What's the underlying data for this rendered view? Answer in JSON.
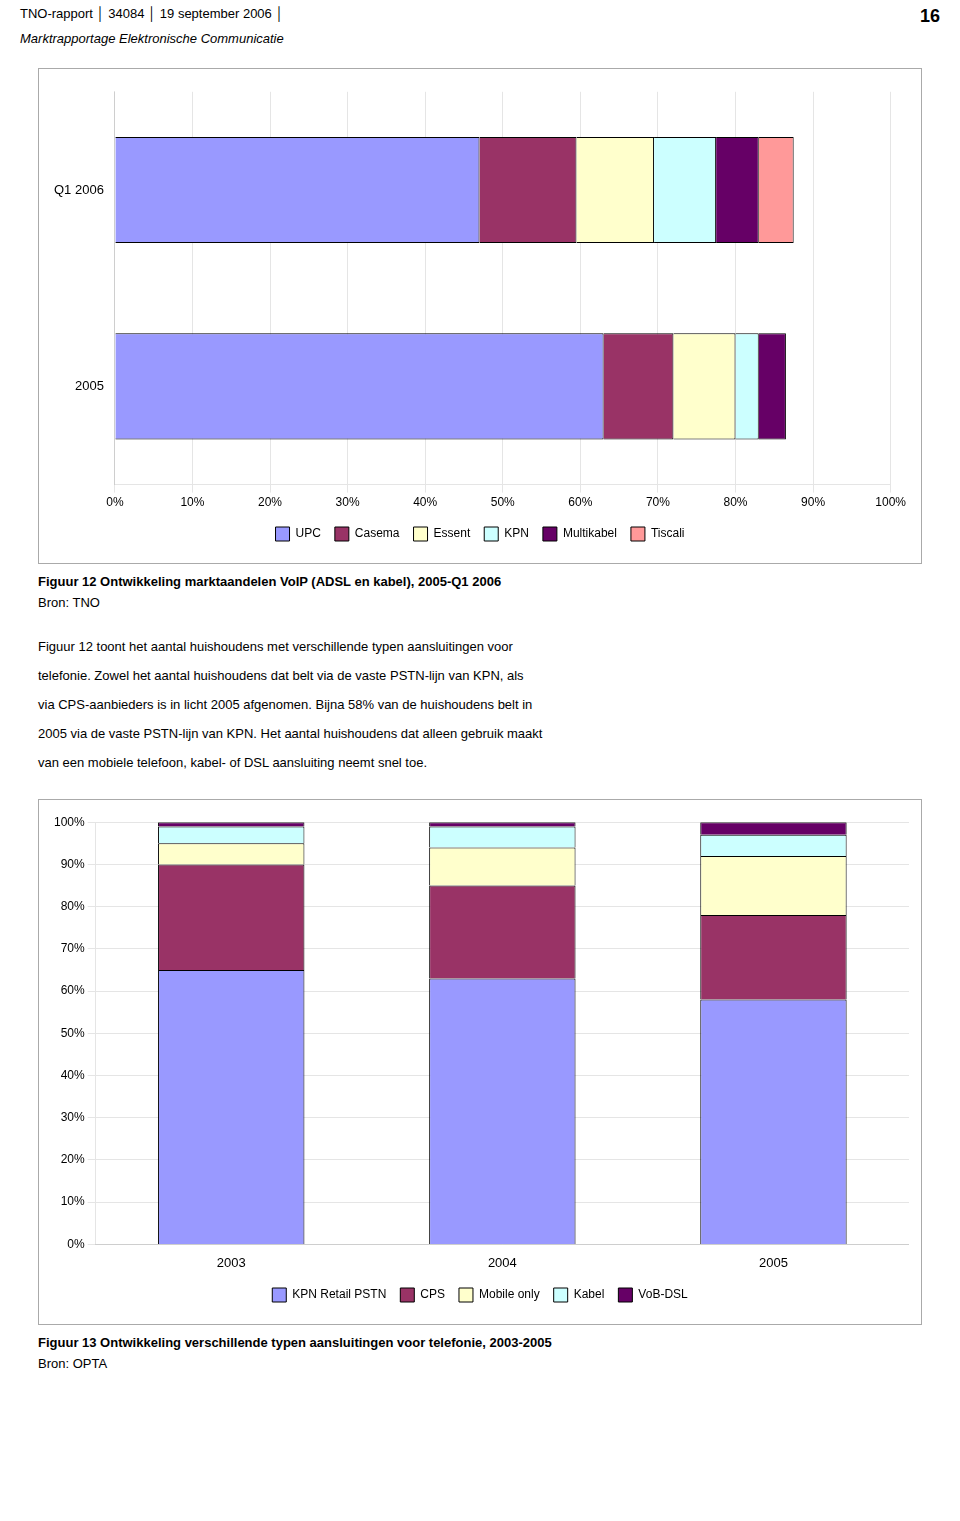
{
  "page_header": "TNO-rapport │ 34084  │ 19 september 2006 │",
  "page_number": "16",
  "page_subtitle": "Marktrapportage Elektronische Communicatie",
  "text_lines": [
    "Figuur 12 toont het aantal huishoudens met verschillende typen aansluitingen voor",
    "telefonie. Zowel het aantal huishoudens dat belt via de vaste PSTN-lijn van KPN, als",
    "via CPS-aanbieders is in licht 2005 afgenomen. Bijna 58% van de huishoudens belt in",
    "2005 via de vaste PSTN-lijn van KPN. Het aantal huishoudens dat alleen gebruik maakt",
    "van een mobiele telefoon, kabel- of DSL aansluiting neemt snel toe."
  ],
  "chart_data": [
    {
      "type": "bar",
      "orientation": "horizontal",
      "stacked": true,
      "title": "Figuur 12 Ontwikkeling marktaandelen VoIP (ADSL en kabel), 2005-Q1 2006",
      "annotations": [
        "Bron: TNO"
      ],
      "categories": [
        "Q1 2006",
        "2005"
      ],
      "series": [
        {
          "name": "UPC",
          "color": "#9999ff",
          "values": [
            47.0,
            63.0
          ]
        },
        {
          "name": "Casema",
          "color": "#993366",
          "values": [
            12.5,
            9.0
          ]
        },
        {
          "name": "Essent",
          "color": "#ffffcc",
          "values": [
            10.0,
            8.0
          ]
        },
        {
          "name": "KPN",
          "color": "#ccffff",
          "values": [
            8.0,
            3.0
          ]
        },
        {
          "name": "Multikabel",
          "color": "#660066",
          "values": [
            5.5,
            3.5
          ]
        },
        {
          "name": "Tiscali",
          "color": "#ff9999",
          "values": [
            4.5,
            0.0
          ]
        }
      ],
      "xlim": [
        0,
        100
      ],
      "xticks": [
        {
          "value": 0,
          "label": "0%"
        },
        {
          "value": 10,
          "label": "10%"
        },
        {
          "value": 20,
          "label": "20%"
        },
        {
          "value": 30,
          "label": "30%"
        },
        {
          "value": 40,
          "label": "40%"
        },
        {
          "value": 50,
          "label": "50%"
        },
        {
          "value": 60,
          "label": "60%"
        },
        {
          "value": 70,
          "label": "70%"
        },
        {
          "value": 80,
          "label": "80%"
        },
        {
          "value": 90,
          "label": "90%"
        },
        {
          "value": 100,
          "label": "100%"
        }
      ],
      "grid": true,
      "legend": "bottom"
    },
    {
      "type": "bar",
      "stacked": true,
      "title": "Figuur 13 Ontwikkeling verschillende typen aansluitingen voor telefonie, 2003-2005",
      "annotations": [
        "Bron: OPTA"
      ],
      "categories": [
        "2003",
        "2004",
        "2005"
      ],
      "series": [
        {
          "name": "KPN Retail PSTN",
          "color": "#9999ff",
          "values": [
            65.0,
            63.0,
            58.0
          ]
        },
        {
          "name": "CPS",
          "color": "#993366",
          "values": [
            25.0,
            22.0,
            20.0
          ]
        },
        {
          "name": "Mobile only",
          "color": "#ffffcc",
          "values": [
            5.0,
            9.0,
            14.0
          ]
        },
        {
          "name": "Kabel",
          "color": "#ccffff",
          "values": [
            4.0,
            5.0,
            5.0
          ]
        },
        {
          "name": "VoB-DSL",
          "color": "#660066",
          "values": [
            1.0,
            1.0,
            3.0
          ]
        }
      ],
      "ylim": [
        0,
        100
      ],
      "yticks": [
        {
          "value": 0,
          "label": "0%"
        },
        {
          "value": 10,
          "label": "10%"
        },
        {
          "value": 20,
          "label": "20%"
        },
        {
          "value": 30,
          "label": "30%"
        },
        {
          "value": 40,
          "label": "40%"
        },
        {
          "value": 50,
          "label": "50%"
        },
        {
          "value": 60,
          "label": "60%"
        },
        {
          "value": 70,
          "label": "70%"
        },
        {
          "value": 80,
          "label": "80%"
        },
        {
          "value": 90,
          "label": "90%"
        },
        {
          "value": 100,
          "label": "100%"
        }
      ],
      "grid": true,
      "legend": "bottom"
    }
  ]
}
